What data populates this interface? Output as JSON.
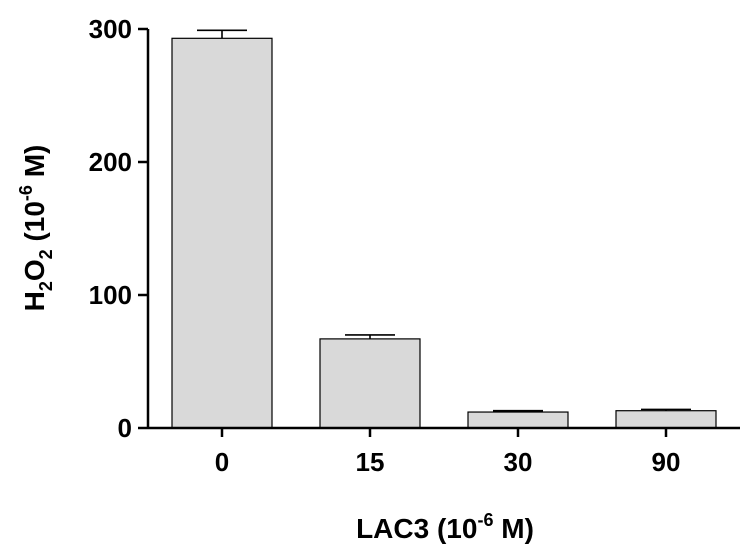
{
  "chart_data": {
    "type": "bar",
    "categories": [
      "0",
      "15",
      "30",
      "90"
    ],
    "values": [
      293,
      67,
      12,
      13
    ],
    "errors": [
      6,
      3,
      1,
      1
    ],
    "ylim": [
      0,
      300
    ],
    "yticks": [
      0,
      100,
      200,
      300
    ],
    "xlabel": {
      "base": "LAC3 (10",
      "exponent": "-6",
      "unit": " M)"
    },
    "ylabel": {
      "h": "H",
      "sub1": "2",
      "o": "O",
      "sub2": "2",
      "base": " (10",
      "exponent": "-6",
      "unit": " M)"
    },
    "bar_color": "#d9d9d9",
    "grid": false,
    "legend": "none"
  }
}
